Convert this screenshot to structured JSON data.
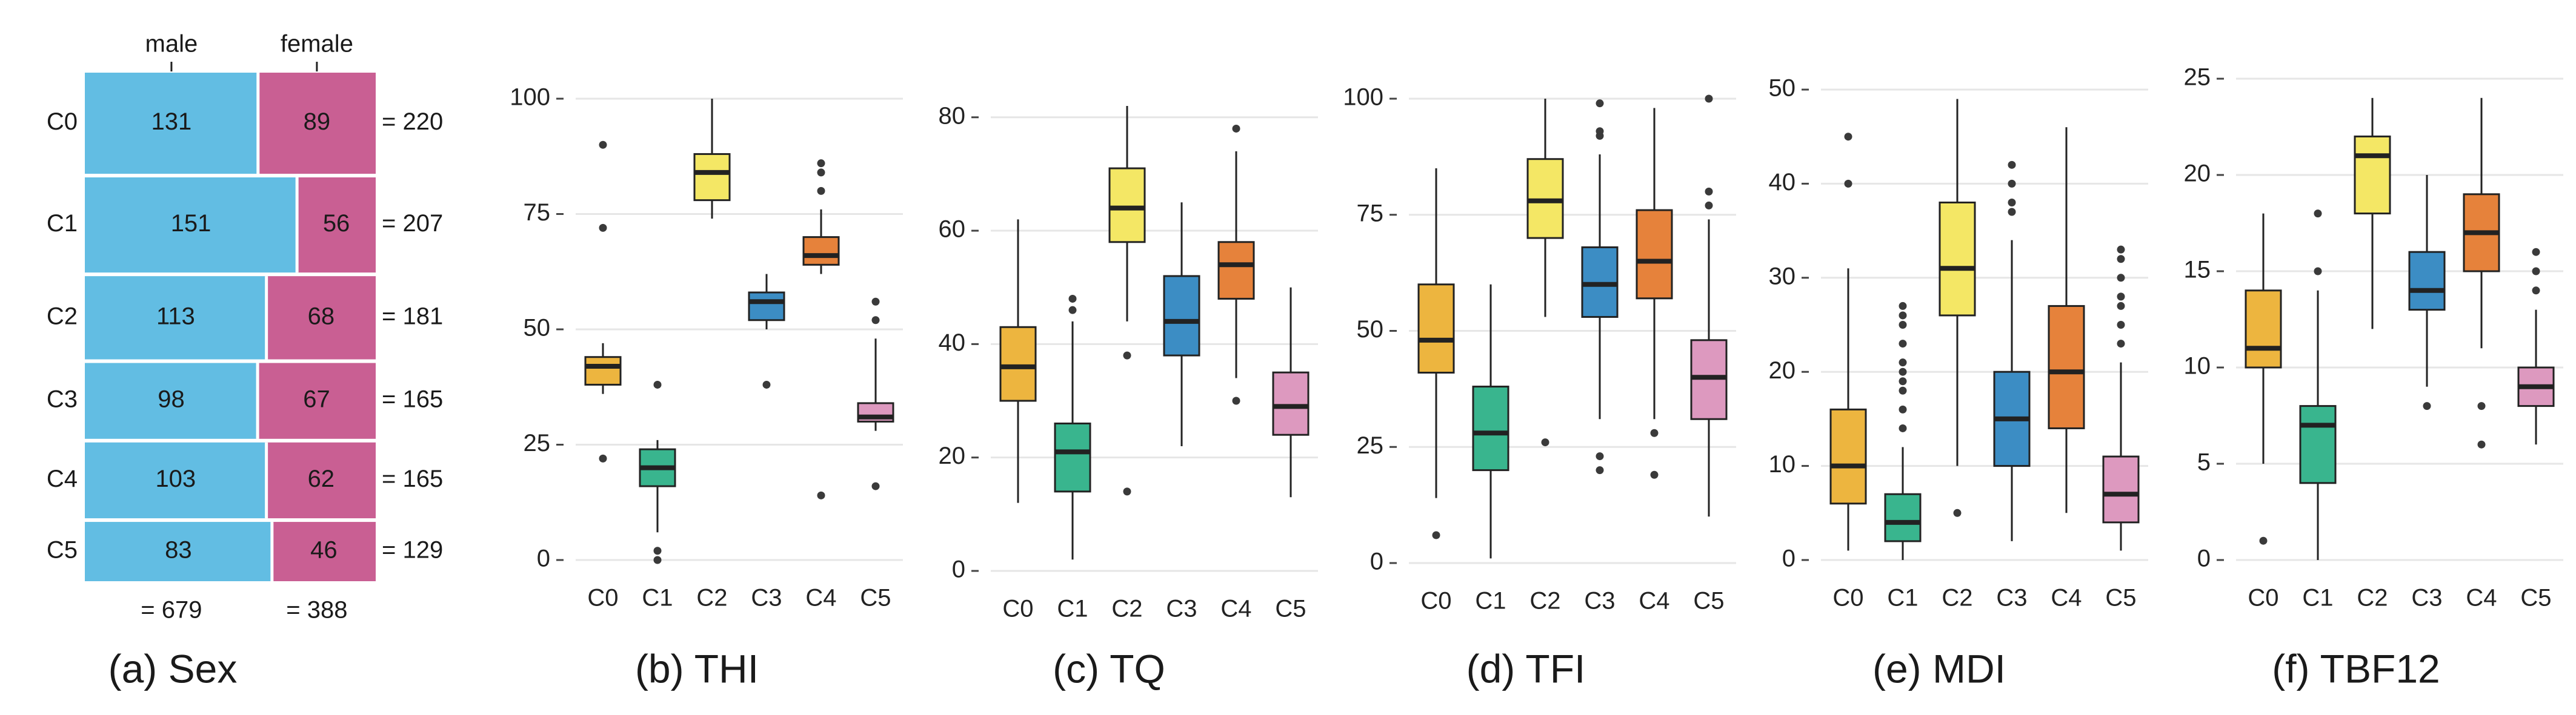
{
  "chart_data": [
    {
      "type": "mosaic",
      "caption": "(a) Sex",
      "columns": [
        "male",
        "female"
      ],
      "rows": [
        "C0",
        "C1",
        "C2",
        "C3",
        "C4",
        "C5"
      ],
      "values": [
        [
          131,
          89
        ],
        [
          151,
          56
        ],
        [
          113,
          68
        ],
        [
          98,
          67
        ],
        [
          103,
          62
        ],
        [
          83,
          46
        ]
      ],
      "row_totals": [
        "= 220",
        "= 207",
        "= 181",
        "= 165",
        "= 165",
        "= 129"
      ],
      "col_totals": [
        "= 679",
        "= 388"
      ],
      "colors": {
        "male": "#62bde3",
        "female": "#c95f93"
      }
    },
    {
      "type": "box",
      "caption": "(b) THI",
      "categories": [
        "C0",
        "C1",
        "C2",
        "C3",
        "C4",
        "C5"
      ],
      "ylim": [
        0,
        100
      ],
      "yticks": [
        0,
        25,
        50,
        75,
        100
      ],
      "boxes": [
        {
          "q1": 38,
          "median": 42,
          "q3": 44,
          "low": 36,
          "high": 47,
          "outliers": [
            22,
            72,
            90
          ]
        },
        {
          "q1": 16,
          "median": 20,
          "q3": 24,
          "low": 6,
          "high": 26,
          "outliers": [
            0,
            2,
            38
          ]
        },
        {
          "q1": 78,
          "median": 84,
          "q3": 88,
          "low": 74,
          "high": 100,
          "outliers": []
        },
        {
          "q1": 52,
          "median": 56,
          "q3": 58,
          "low": 50,
          "high": 62,
          "outliers": [
            38
          ]
        },
        {
          "q1": 64,
          "median": 66,
          "q3": 70,
          "low": 62,
          "high": 76,
          "outliers": [
            14,
            80,
            84,
            86
          ]
        },
        {
          "q1": 30,
          "median": 31,
          "q3": 34,
          "low": 28,
          "high": 48,
          "outliers": [
            16,
            52,
            56
          ]
        }
      ]
    },
    {
      "type": "box",
      "caption": "(c) TQ",
      "categories": [
        "C0",
        "C1",
        "C2",
        "C3",
        "C4",
        "C5"
      ],
      "ylim": [
        0,
        82
      ],
      "yticks": [
        0,
        20,
        40,
        60,
        80
      ],
      "boxes": [
        {
          "q1": 30,
          "median": 36,
          "q3": 43,
          "low": 12,
          "high": 62,
          "outliers": []
        },
        {
          "q1": 14,
          "median": 21,
          "q3": 26,
          "low": 2,
          "high": 44,
          "outliers": [
            46,
            48
          ]
        },
        {
          "q1": 58,
          "median": 64,
          "q3": 71,
          "low": 44,
          "high": 82,
          "outliers": [
            14,
            38
          ]
        },
        {
          "q1": 38,
          "median": 44,
          "q3": 52,
          "low": 22,
          "high": 65,
          "outliers": []
        },
        {
          "q1": 48,
          "median": 54,
          "q3": 58,
          "low": 34,
          "high": 74,
          "outliers": [
            30,
            78
          ]
        },
        {
          "q1": 24,
          "median": 29,
          "q3": 35,
          "low": 13,
          "high": 50,
          "outliers": []
        }
      ]
    },
    {
      "type": "box",
      "caption": "(d) TFI",
      "categories": [
        "C0",
        "C1",
        "C2",
        "C3",
        "C4",
        "C5"
      ],
      "ylim": [
        0,
        100
      ],
      "yticks": [
        0,
        25,
        50,
        75,
        100
      ],
      "boxes": [
        {
          "q1": 41,
          "median": 48,
          "q3": 60,
          "low": 14,
          "high": 85,
          "outliers": [
            6
          ]
        },
        {
          "q1": 20,
          "median": 28,
          "q3": 38,
          "low": 1,
          "high": 60,
          "outliers": []
        },
        {
          "q1": 70,
          "median": 78,
          "q3": 87,
          "low": 53,
          "high": 100,
          "outliers": [
            26
          ]
        },
        {
          "q1": 53,
          "median": 60,
          "q3": 68,
          "low": 31,
          "high": 88,
          "outliers": [
            20,
            23,
            92,
            93,
            99
          ]
        },
        {
          "q1": 57,
          "median": 65,
          "q3": 76,
          "low": 31,
          "high": 98,
          "outliers": [
            19,
            28
          ]
        },
        {
          "q1": 31,
          "median": 40,
          "q3": 48,
          "low": 10,
          "high": 74,
          "outliers": [
            77,
            80,
            100
          ]
        }
      ]
    },
    {
      "type": "box",
      "caption": "(e) MDI",
      "categories": [
        "C0",
        "C1",
        "C2",
        "C3",
        "C4",
        "C5"
      ],
      "ylim": [
        0,
        50
      ],
      "yticks": [
        0,
        10,
        20,
        30,
        40,
        50
      ],
      "boxes": [
        {
          "q1": 6,
          "median": 10,
          "q3": 16,
          "low": 1,
          "high": 31,
          "outliers": [
            40,
            45
          ]
        },
        {
          "q1": 2,
          "median": 4,
          "q3": 7,
          "low": 0,
          "high": 12,
          "outliers": [
            14,
            16,
            18,
            19,
            20,
            21,
            23,
            25,
            26,
            27
          ]
        },
        {
          "q1": 26,
          "median": 31,
          "q3": 38,
          "low": 10,
          "high": 49,
          "outliers": [
            5
          ]
        },
        {
          "q1": 10,
          "median": 15,
          "q3": 20,
          "low": 2,
          "high": 34,
          "outliers": [
            37,
            38,
            40,
            42
          ]
        },
        {
          "q1": 14,
          "median": 20,
          "q3": 27,
          "low": 5,
          "high": 46,
          "outliers": []
        },
        {
          "q1": 4,
          "median": 7,
          "q3": 11,
          "low": 1,
          "high": 21,
          "outliers": [
            23,
            25,
            27,
            28,
            30,
            32,
            33
          ]
        }
      ]
    },
    {
      "type": "box",
      "caption": "(f) TBF12",
      "categories": [
        "C0",
        "C1",
        "C2",
        "C3",
        "C4",
        "C5"
      ],
      "ylim": [
        0,
        25
      ],
      "yticks": [
        0,
        5,
        10,
        15,
        20,
        25
      ],
      "boxes": [
        {
          "q1": 10,
          "median": 11,
          "q3": 14,
          "low": 5,
          "high": 18,
          "outliers": [
            1
          ]
        },
        {
          "q1": 4,
          "median": 7,
          "q3": 8,
          "low": 0,
          "high": 14,
          "outliers": [
            15,
            18
          ]
        },
        {
          "q1": 18,
          "median": 21,
          "q3": 22,
          "low": 12,
          "high": 24,
          "outliers": []
        },
        {
          "q1": 13,
          "median": 14,
          "q3": 16,
          "low": 9,
          "high": 20,
          "outliers": [
            8
          ]
        },
        {
          "q1": 15,
          "median": 17,
          "q3": 19,
          "low": 11,
          "high": 24,
          "outliers": [
            6,
            8
          ]
        },
        {
          "q1": 8,
          "median": 9,
          "q3": 10,
          "low": 6,
          "high": 13,
          "outliers": [
            14,
            15,
            16
          ]
        }
      ]
    }
  ],
  "box_colors": [
    "#edb53f",
    "#39b58e",
    "#f4e765",
    "#3c8dc4",
    "#e6823b",
    "#dd99bf"
  ],
  "grid_color": "#e6e6e6"
}
